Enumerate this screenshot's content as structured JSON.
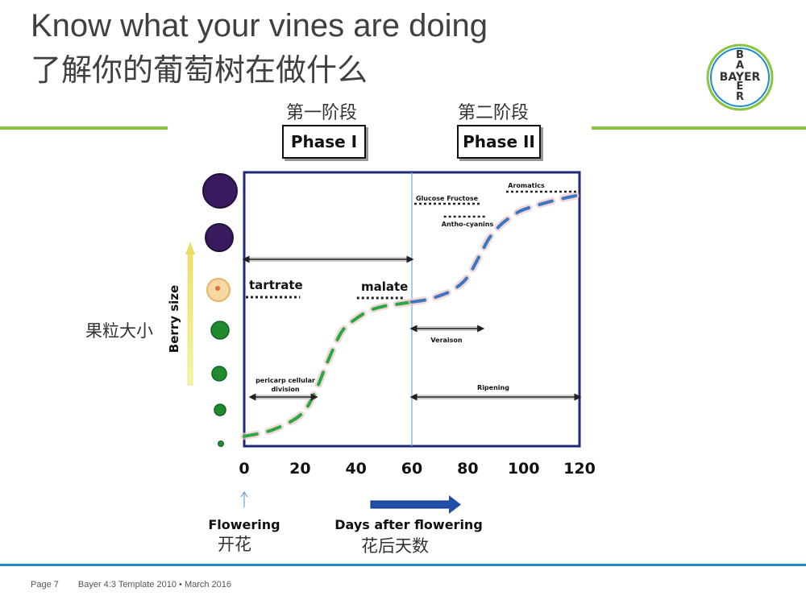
{
  "header": {
    "title_en": "Know what your vines are doing",
    "title_zh": "了解你的葡萄树在做什么"
  },
  "logo": {
    "text_vertical": [
      "B",
      "A",
      "Y",
      "E",
      "R"
    ],
    "text_horizontal": "BAYER"
  },
  "phases": [
    {
      "zh": "第一阶段",
      "label": "Phase I"
    },
    {
      "zh": "第二阶段",
      "label": "Phase II"
    }
  ],
  "footer": {
    "page": "Page 7",
    "template": "Bayer 4:3 Template 2010 • March 2016"
  },
  "colors": {
    "accent_green": "#89c540",
    "accent_blue": "#1a8ccf",
    "frame_navy": "#1e2a78",
    "phase1_curve": "#2aa844",
    "phase2_curve": "#3b78c4",
    "berry_purple": "#3a1a5e",
    "berry_green": "#1f8a2e"
  },
  "chart_data": {
    "type": "line",
    "xlim": [
      0,
      120
    ],
    "xticks": [
      "0",
      "20",
      "40",
      "60",
      "80",
      "100",
      "120"
    ],
    "xlabel": "Days after flowering",
    "xlabel_zh": "花后天数",
    "ylabel": "Berry size",
    "ylabel_zh": "果粒大小",
    "flowering": {
      "label": "Flowering",
      "zh": "开花",
      "x": 0
    },
    "veraison_line_x": 60,
    "series": [
      {
        "segment": "phase1",
        "x": [
          0,
          10,
          20,
          25,
          30,
          35,
          40,
          45,
          50,
          55,
          60
        ],
        "y": [
          0.02,
          0.05,
          0.12,
          0.22,
          0.38,
          0.52,
          0.58,
          0.62,
          0.64,
          0.65,
          0.66
        ]
      },
      {
        "segment": "phase2",
        "x": [
          60,
          65,
          70,
          75,
          80,
          85,
          88,
          92,
          96,
          100,
          110,
          120
        ],
        "y": [
          0.66,
          0.67,
          0.69,
          0.72,
          0.78,
          0.9,
          0.97,
          1.03,
          1.07,
          1.1,
          1.14,
          1.17
        ]
      }
    ],
    "annotations": [
      {
        "text": "tartrate",
        "x_start": 0,
        "x_end": 20,
        "style": "bold"
      },
      {
        "text": "malate",
        "x_start": 38,
        "x_end": 58,
        "style": "bold"
      },
      {
        "text": "Glucose Fructose",
        "x_start": 60,
        "x_end": 92
      },
      {
        "text": "Aromatics",
        "x_start": 92,
        "x_end": 120
      },
      {
        "text": "Antho-cyanins",
        "x_start": 70,
        "x_end": 90
      },
      {
        "text": "Veraison",
        "x_start": 60,
        "x_end": 85
      },
      {
        "text": "pericarp cellular division",
        "x_start": 2,
        "x_end": 26
      },
      {
        "text": "Ripening",
        "x_start": 60,
        "x_end": 120
      }
    ],
    "top_span": {
      "x_start": 0,
      "x_end": 60
    }
  }
}
